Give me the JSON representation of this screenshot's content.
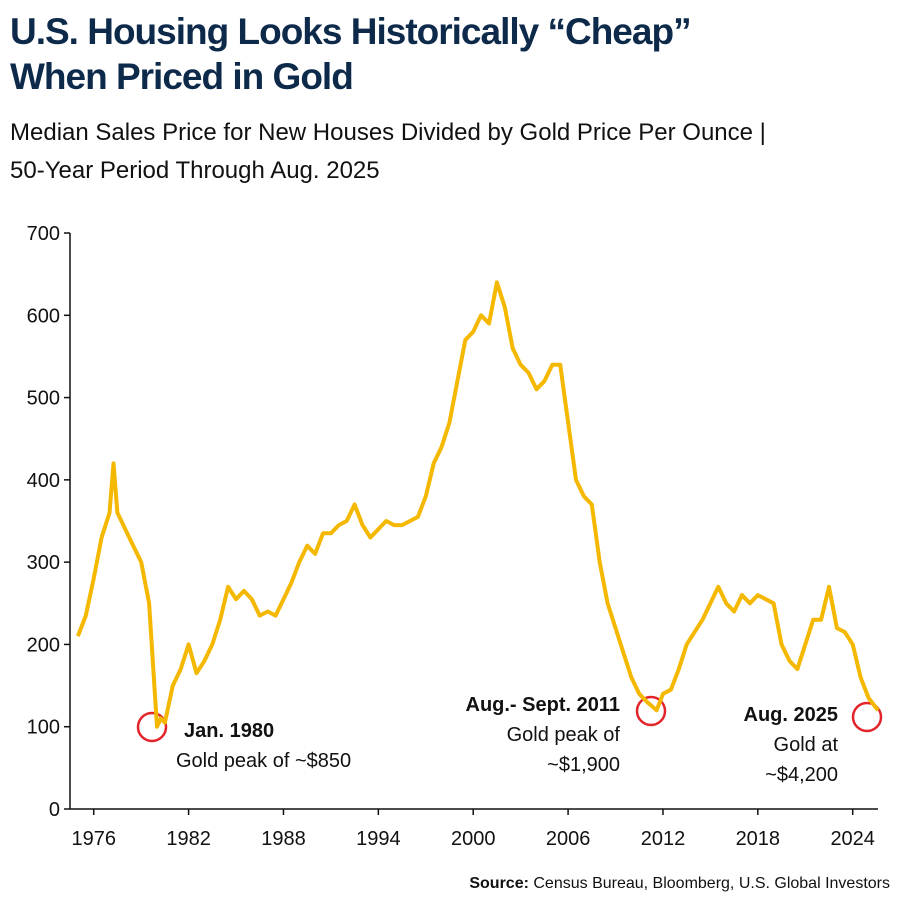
{
  "chart_data": {
    "type": "line",
    "title": [
      "U.S. Housing Looks Historically “Cheap”",
      "When Priced in Gold"
    ],
    "subtitle": [
      "Median Sales Price for New Houses Divided by Gold Price Per Ounce |",
      "50-Year Period Through Aug. 2025"
    ],
    "color": "#f5b800",
    "x": [
      1975.0,
      1975.5,
      1976.0,
      1976.5,
      1977.0,
      1977.25,
      1977.5,
      1978.0,
      1978.5,
      1979.0,
      1979.5,
      1980.0,
      1980.25,
      1980.5,
      1981.0,
      1981.5,
      1982.0,
      1982.5,
      1983.0,
      1983.5,
      1984.0,
      1984.5,
      1985.0,
      1985.5,
      1986.0,
      1986.5,
      1987.0,
      1987.5,
      1988.0,
      1988.5,
      1989.0,
      1989.5,
      1990.0,
      1990.5,
      1991.0,
      1991.5,
      1992.0,
      1992.5,
      1993.0,
      1993.5,
      1994.0,
      1994.5,
      1995.0,
      1995.5,
      1996.0,
      1996.5,
      1997.0,
      1997.5,
      1998.0,
      1998.5,
      1999.0,
      1999.5,
      2000.0,
      2000.5,
      2001.0,
      2001.5,
      2002.0,
      2002.5,
      2003.0,
      2003.5,
      2004.0,
      2004.5,
      2005.0,
      2005.5,
      2006.0,
      2006.5,
      2007.0,
      2007.5,
      2008.0,
      2008.5,
      2009.0,
      2009.5,
      2010.0,
      2010.5,
      2011.0,
      2011.6,
      2012.0,
      2012.5,
      2013.0,
      2013.5,
      2014.0,
      2014.5,
      2015.0,
      2015.5,
      2016.0,
      2016.5,
      2017.0,
      2017.5,
      2018.0,
      2018.5,
      2019.0,
      2019.5,
      2020.0,
      2020.5,
      2021.0,
      2021.5,
      2022.0,
      2022.5,
      2023.0,
      2023.5,
      2024.0,
      2024.5,
      2025.0,
      2025.6
    ],
    "values": [
      210,
      235,
      280,
      330,
      360,
      420,
      360,
      340,
      320,
      300,
      250,
      100,
      110,
      105,
      150,
      170,
      200,
      165,
      180,
      200,
      230,
      270,
      255,
      265,
      255,
      235,
      240,
      235,
      255,
      275,
      300,
      320,
      310,
      335,
      335,
      345,
      350,
      370,
      345,
      330,
      340,
      350,
      345,
      345,
      350,
      355,
      380,
      420,
      440,
      470,
      520,
      570,
      580,
      600,
      590,
      640,
      610,
      560,
      540,
      530,
      510,
      520,
      540,
      540,
      470,
      400,
      380,
      370,
      300,
      250,
      220,
      190,
      160,
      140,
      130,
      120,
      140,
      145,
      170,
      200,
      215,
      230,
      250,
      270,
      250,
      240,
      260,
      250,
      260,
      255,
      250,
      200,
      180,
      170,
      200,
      230,
      230,
      270,
      220,
      215,
      200,
      160,
      135,
      120
    ],
    "xlim": [
      1974.5,
      2025.6
    ],
    "xticks": [
      1976,
      1982,
      1988,
      1994,
      2000,
      2006,
      2012,
      2018,
      2024
    ],
    "ylim": [
      0,
      700
    ],
    "yticks": [
      0,
      100,
      200,
      300,
      400,
      500,
      600,
      700
    ],
    "grid": false,
    "annotations": [
      {
        "title": "Jan. 1980",
        "lines": [
          "Gold peak of ~$850"
        ]
      },
      {
        "title": "Aug.- Sept. 2011",
        "lines": [
          "Gold peak of",
          "~$1,900"
        ]
      },
      {
        "title": "Aug. 2025",
        "lines": [
          "Gold at",
          "~$4,200"
        ]
      }
    ],
    "source_label": "Source:",
    "source": "Census Bureau, Bloomberg, U.S. Global Investors"
  }
}
